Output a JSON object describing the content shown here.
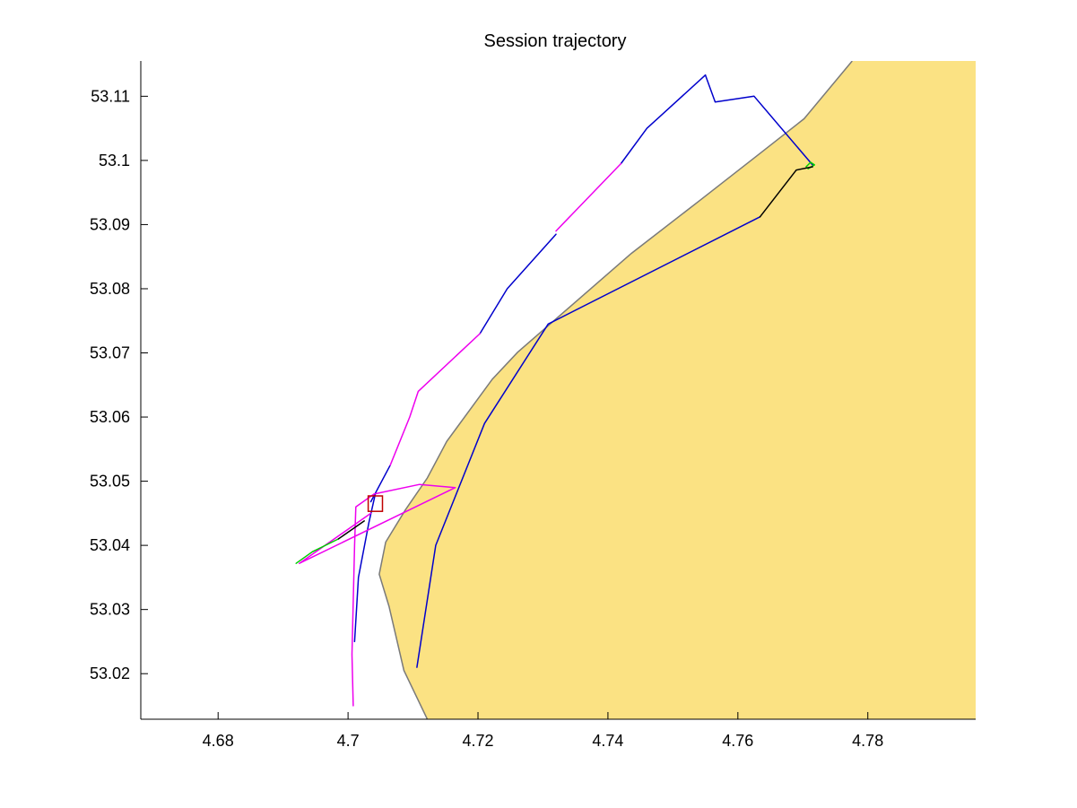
{
  "chart_data": {
    "type": "line",
    "title": "Session trajectory",
    "xlabel": "",
    "ylabel": "",
    "xlim": [
      4.6681,
      4.7966
    ],
    "ylim": [
      53.0129,
      53.1155
    ],
    "x_ticks": [
      4.68,
      4.7,
      4.72,
      4.74,
      4.76,
      4.78
    ],
    "x_tick_labels": [
      "4.68",
      "4.7",
      "4.72",
      "4.74",
      "4.76",
      "4.78"
    ],
    "y_ticks": [
      53.02,
      53.03,
      53.04,
      53.05,
      53.06,
      53.07,
      53.08,
      53.09,
      53.1,
      53.11
    ],
    "y_tick_labels": [
      "53.02",
      "53.03",
      "53.04",
      "53.05",
      "53.06",
      "53.07",
      "53.08",
      "53.09",
      "53.1",
      "53.11"
    ],
    "grid": false,
    "legend": "none",
    "colors": {
      "land_fill": "#fbe283",
      "coastline": "#7a7a7a",
      "axes": "#000000",
      "marker": "#c00000"
    },
    "land": {
      "coastline": [
        [
          4.7122,
          53.0129
        ],
        [
          4.7086,
          53.0205
        ],
        [
          4.7063,
          53.0305
        ],
        [
          4.7048,
          53.0355
        ],
        [
          4.7058,
          53.0405
        ],
        [
          4.7088,
          53.0455
        ],
        [
          4.7122,
          53.0505
        ],
        [
          4.7152,
          53.0562
        ],
        [
          4.7222,
          53.0659
        ],
        [
          4.7261,
          53.0701
        ],
        [
          4.7328,
          53.076
        ],
        [
          4.7436,
          53.0855
        ],
        [
          4.7542,
          53.0938
        ],
        [
          4.7633,
          53.101
        ],
        [
          4.7702,
          53.1065
        ],
        [
          4.7776,
          53.1155
        ]
      ]
    },
    "series": [
      {
        "color": "#0000cc",
        "segments": [
          [
            [
              4.755,
              53.1133
            ],
            [
              4.7565,
              53.1091
            ],
            [
              4.7625,
              53.11
            ],
            [
              4.7715,
              53.0993
            ]
          ],
          [
            [
              4.742,
              53.0995
            ],
            [
              4.746,
              53.105
            ],
            [
              4.755,
              53.1133
            ]
          ],
          [
            [
              4.7203,
              53.073
            ],
            [
              4.7245,
              53.08
            ],
            [
              4.732,
              53.0885
            ]
          ],
          [
            [
              4.7042,
              53.048
            ],
            [
              4.7032,
              53.0435
            ],
            [
              4.7016,
              53.035
            ],
            [
              4.701,
              53.025
            ]
          ],
          [
            [
              4.7035,
              53.0468
            ],
            [
              4.7065,
              53.0525
            ]
          ],
          [
            [
              4.7106,
              53.021
            ],
            [
              4.7135,
              53.04
            ],
            [
              4.721,
              53.059
            ],
            [
              4.7308,
              53.0745
            ],
            [
              4.7634,
              53.0912
            ]
          ]
        ]
      },
      {
        "color": "#ee00ee",
        "segments": [
          [
            [
              4.732,
              53.089
            ],
            [
              4.742,
              53.0995
            ]
          ],
          [
            [
              4.7065,
              53.0525
            ],
            [
              4.7095,
              53.06
            ],
            [
              4.7108,
              53.064
            ],
            [
              4.7203,
              53.073
            ]
          ],
          [
            [
              4.7008,
              53.015
            ],
            [
              4.7006,
              53.023
            ],
            [
              4.701,
              53.04
            ],
            [
              4.7012,
              53.046
            ],
            [
              4.704,
              53.048
            ],
            [
              4.711,
              53.0495
            ],
            [
              4.7165,
              53.049
            ],
            [
              4.6925,
              53.0372
            ],
            [
              4.7035,
              53.045
            ]
          ]
        ]
      },
      {
        "color": "#00cc00",
        "segments": [
          [
            [
              4.692,
              53.0372
            ],
            [
              4.6945,
              53.039
            ],
            [
              4.6985,
              53.041
            ]
          ],
          [
            [
              4.7705,
              53.099
            ],
            [
              4.7712,
              53.0997
            ],
            [
              4.7718,
              53.0993
            ],
            [
              4.7708,
              53.0987
            ]
          ]
        ]
      },
      {
        "color": "#000000",
        "segments": [
          [
            [
              4.6985,
              53.041
            ],
            [
              4.7025,
              53.0438
            ]
          ],
          [
            [
              4.7634,
              53.0912
            ],
            [
              4.769,
              53.0985
            ],
            [
              4.7715,
              53.099
            ]
          ]
        ]
      }
    ],
    "annotations": [
      {
        "type": "square-marker",
        "x": 4.7042,
        "y": 53.0465,
        "half_width": 0.0011,
        "half_height": 0.0012
      }
    ]
  }
}
